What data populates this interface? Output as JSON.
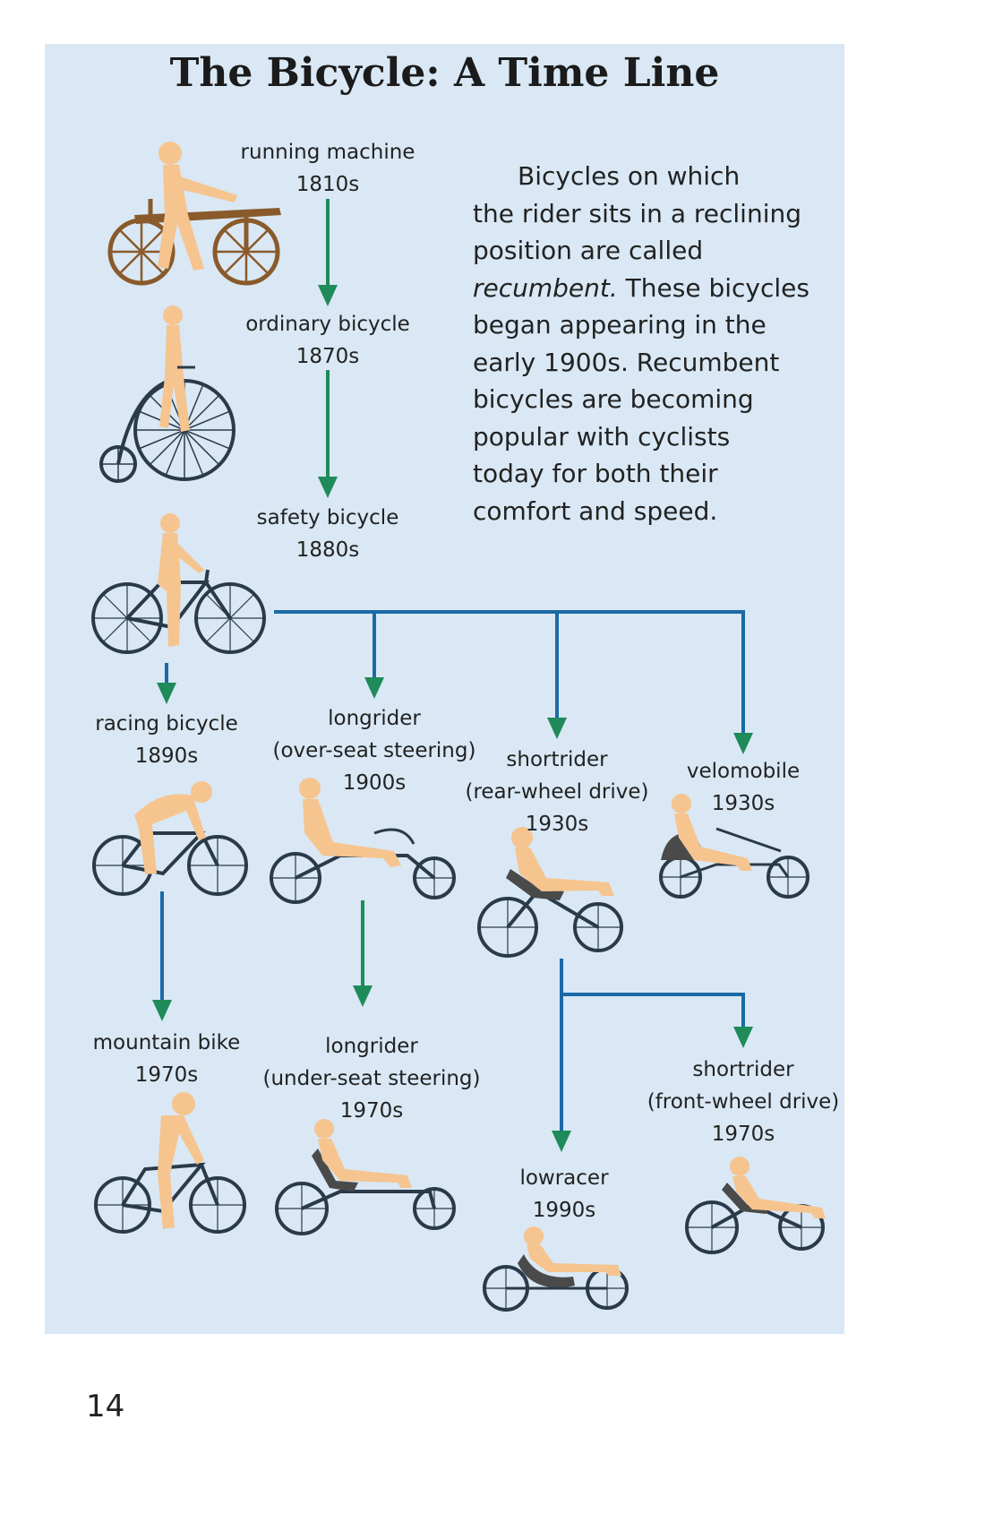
{
  "title": "The Bicycle: A Time Line",
  "description": {
    "line1": "Bicycles on which",
    "line2": "the rider sits in a reclining",
    "line3": "position are called",
    "emphasis": "recumbent.",
    "line4_rest": " These bicycles",
    "line5": "began appearing in the",
    "line6": "early 1900s. Recumbent",
    "line7": "bicycles are becoming",
    "line8": "popular with cyclists",
    "line9": "today for both their",
    "line10": "comfort and speed."
  },
  "bicycles": [
    {
      "name": "running machine",
      "sub": "",
      "year": "1810s"
    },
    {
      "name": "ordinary bicycle",
      "sub": "",
      "year": "1870s"
    },
    {
      "name": "safety bicycle",
      "sub": "",
      "year": "1880s"
    },
    {
      "name": "racing bicycle",
      "sub": "",
      "year": "1890s"
    },
    {
      "name": "longrider",
      "sub": "(over-seat steering)",
      "year": "1900s"
    },
    {
      "name": "shortrider",
      "sub": "(rear-wheel drive)",
      "year": "1930s"
    },
    {
      "name": "velomobile",
      "sub": "",
      "year": "1930s"
    },
    {
      "name": "mountain bike",
      "sub": "",
      "year": "1970s"
    },
    {
      "name": "longrider",
      "sub": "(under-seat steering)",
      "year": "1970s"
    },
    {
      "name": "lowracer",
      "sub": "",
      "year": "1990s"
    },
    {
      "name": "shortrider",
      "sub": "(front-wheel drive)",
      "year": "1970s"
    }
  ],
  "page_number": "14",
  "colors": {
    "panel": "#d9e8f4",
    "green_arrow": "#1f8a5a",
    "blue_line": "#1a6aa8",
    "rider": "#f6c48f",
    "frame_dark": "#2b3a4a",
    "wood": "#8a5a2b"
  }
}
